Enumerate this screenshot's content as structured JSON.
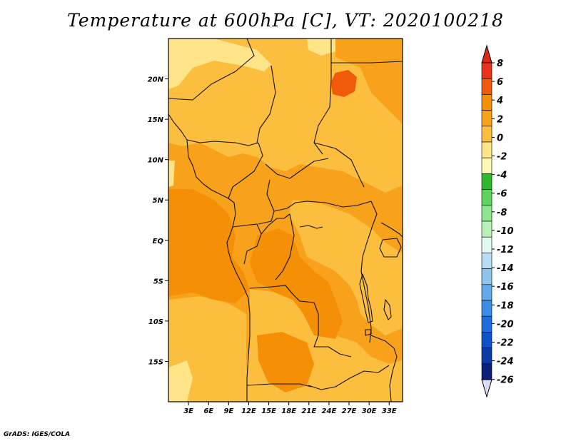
{
  "title": "Temperature at 600hPa [C], VT: 2020100218",
  "credit": "GrADS: IGES/COLA",
  "map": {
    "lon_range": [
      0,
      35
    ],
    "lat_range": [
      -20,
      25
    ],
    "lat_ticks": [
      {
        "value": 20,
        "label": "20N"
      },
      {
        "value": 15,
        "label": "15N"
      },
      {
        "value": 10,
        "label": "10N"
      },
      {
        "value": 5,
        "label": "5N"
      },
      {
        "value": 0,
        "label": "EQ"
      },
      {
        "value": -5,
        "label": "5S"
      },
      {
        "value": -10,
        "label": "10S"
      },
      {
        "value": -15,
        "label": "15S"
      }
    ],
    "lon_ticks": [
      {
        "value": 3,
        "label": "3E"
      },
      {
        "value": 6,
        "label": "6E"
      },
      {
        "value": 9,
        "label": "9E"
      },
      {
        "value": 12,
        "label": "12E"
      },
      {
        "value": 15,
        "label": "15E"
      },
      {
        "value": 18,
        "label": "18E"
      },
      {
        "value": 21,
        "label": "21E"
      },
      {
        "value": 24,
        "label": "24E"
      },
      {
        "value": 27,
        "label": "27E"
      },
      {
        "value": 30,
        "label": "30E"
      },
      {
        "value": 33,
        "label": "33E"
      }
    ]
  },
  "colorbar": {
    "labels": [
      "8",
      "6",
      "4",
      "2",
      "0",
      "-2",
      "-4",
      "-6",
      "-8",
      "-10",
      "-12",
      "-14",
      "-16",
      "-18",
      "-20",
      "-22",
      "-24",
      "-26"
    ],
    "colors": [
      "#e8321a",
      "#f05a0a",
      "#f59006",
      "#f8a21c",
      "#fbbe3e",
      "#ffe488",
      "#fff7b4",
      "#2eb82e",
      "#5fd35f",
      "#8ee68e",
      "#b8f2b8",
      "#e2f8f0",
      "#b8dcf5",
      "#8cc4f0",
      "#62a8ec",
      "#3c8ce6",
      "#1c6ede",
      "#0e52c8",
      "#0a3aa8",
      "#08207a"
    ],
    "top_arrow_color": "#d82a18",
    "bottom_arrow_color": "#d8dcf8"
  },
  "field_colors": {
    "base": "#f8a21c",
    "warmer": "#f59006",
    "cooler": "#fbbe3e",
    "cool_patch": "#ffe488",
    "hot_patch": "#f05a0a"
  }
}
